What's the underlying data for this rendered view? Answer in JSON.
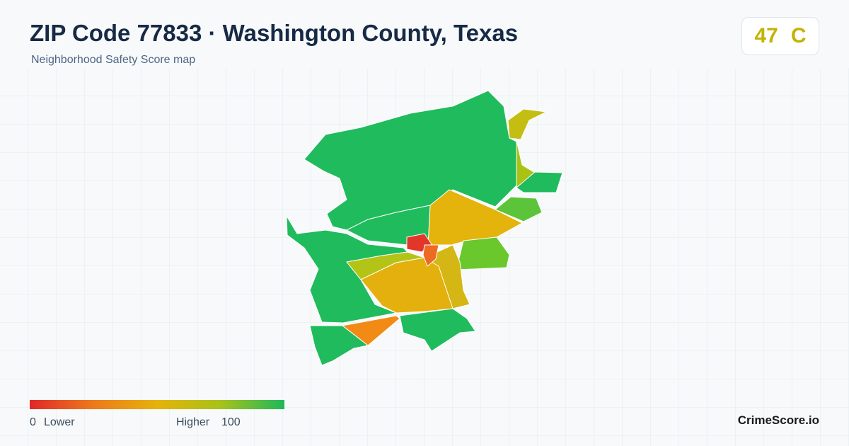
{
  "header": {
    "title": "ZIP Code 77833 · Washington County, Texas",
    "subtitle": "Neighborhood Safety Score map"
  },
  "score": {
    "value": 47,
    "grade": "C"
  },
  "legend": {
    "min": 0,
    "min_label": "Lower",
    "max_label": "Higher",
    "max": 100
  },
  "brand": "CrimeScore.io"
}
